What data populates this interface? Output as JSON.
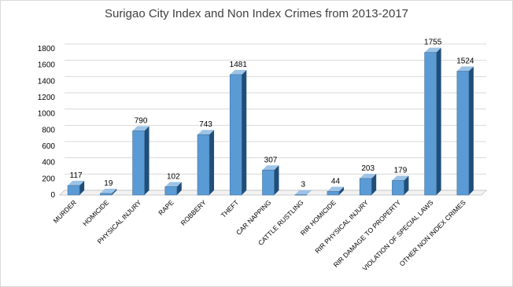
{
  "chart_data": {
    "type": "bar",
    "title": "Surigao City Index and Non Index Crimes from 2013-2017",
    "xlabel": "",
    "ylabel": "",
    "categories": [
      "MURDER",
      "HOMICIDE",
      "PHYSICAL INJURY",
      "RAPE",
      "ROBBERY",
      "THEFT",
      "CAR NAPPING",
      "CATTLE RUSTLING",
      "RIR HOMICIDE",
      "RIR PHYSICAL INJURY",
      "RIR DAMAGE TO PROPERTY",
      "VIOLATION OF SPECIAL LAWS",
      "OTHER NON INDEX CRIMES"
    ],
    "values": [
      117,
      19,
      790,
      102,
      743,
      1481,
      307,
      3,
      44,
      203,
      179,
      1755,
      1524
    ],
    "ylim": [
      0,
      1800
    ],
    "yticks": [
      0,
      200,
      400,
      600,
      800,
      1000,
      1200,
      1400,
      1600,
      1800
    ],
    "grid": true,
    "bar_style": "3d",
    "colors": {
      "front": "#5b9bd5",
      "side": "#1f4e79",
      "top": "#9dc3e6",
      "grid": "#d9d9d9",
      "floor": "#bfbfbf"
    }
  }
}
